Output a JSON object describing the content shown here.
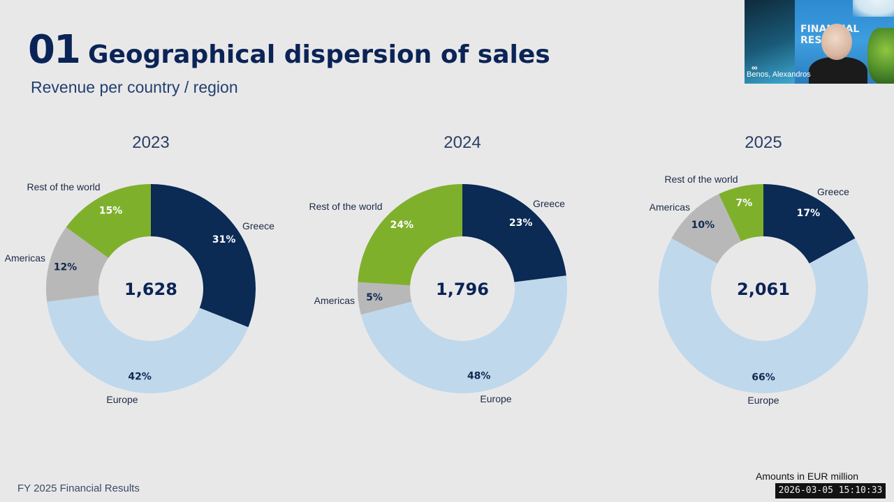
{
  "header": {
    "number": "01",
    "title": "Geographical dispersion of sales",
    "subtitle": "Revenue per country / region"
  },
  "colors": {
    "greece": "#0b2a54",
    "europe": "#bfd8ec",
    "americas": "#b8b8b9",
    "rest_of_world": "#7fb02c"
  },
  "chart_data": [
    {
      "type": "pie",
      "title": "2023",
      "center_label": "1,628",
      "labels": [
        "Greece",
        "Europe",
        "Americas",
        "Rest of the world"
      ],
      "values": [
        31,
        42,
        12,
        15
      ],
      "value_labels": [
        "31%",
        "42%",
        "12%",
        "15%"
      ]
    },
    {
      "type": "pie",
      "title": "2024",
      "center_label": "1,796",
      "labels": [
        "Greece",
        "Europe",
        "Americas",
        "Rest of the world"
      ],
      "values": [
        23,
        48,
        5,
        24
      ],
      "value_labels": [
        "23%",
        "48%",
        "5%",
        "24%"
      ]
    },
    {
      "type": "pie",
      "title": "2025",
      "center_label": "2,061",
      "labels": [
        "Greece",
        "Europe",
        "Americas",
        "Rest of the world"
      ],
      "values": [
        17,
        66,
        10,
        7
      ],
      "value_labels": [
        "17%",
        "66%",
        "10%",
        "7%"
      ]
    }
  ],
  "footer": {
    "left": "FY 2025  Financial Results",
    "note": "Amounts in EUR million",
    "timestamp": "2026-03-05  15:10:33"
  },
  "video": {
    "participant_name": "Benos, Alexandros",
    "banner_text": "FINANCIAL RESULTS"
  }
}
